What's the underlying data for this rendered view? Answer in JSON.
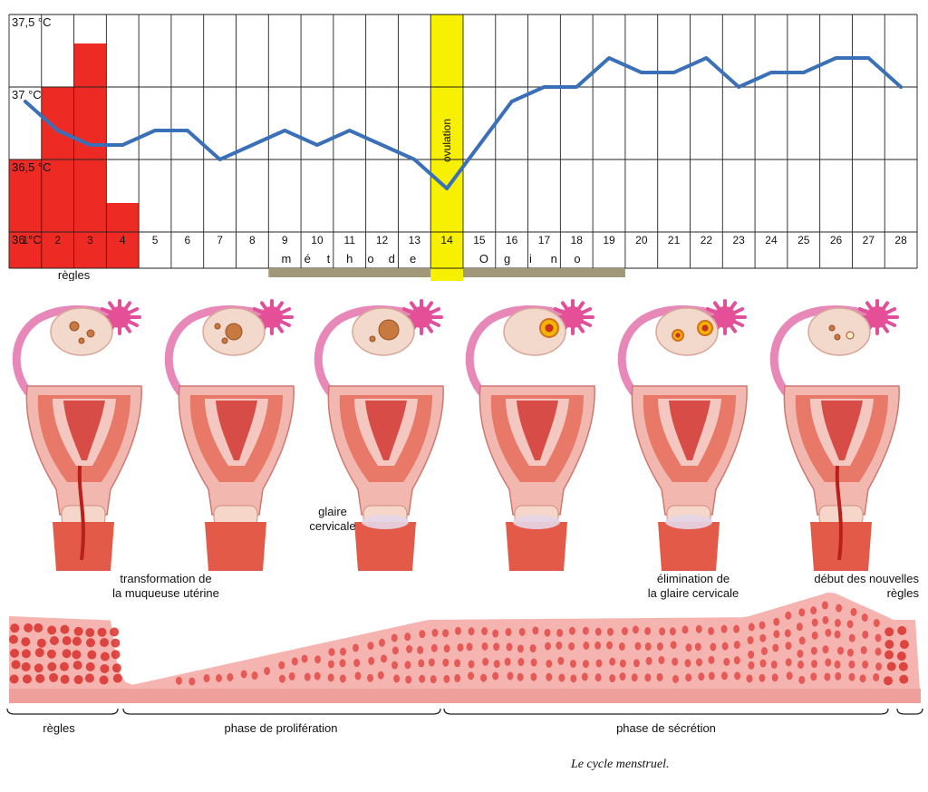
{
  "chart_data": {
    "type": "line",
    "temperature_axis": {
      "ticks": [
        "37,5 °C",
        "37 °C",
        "36,5 °C",
        "36 °C"
      ],
      "ylim": [
        36.0,
        37.5
      ]
    },
    "day_labels": [
      "1",
      "2",
      "3",
      "4",
      "5",
      "6",
      "7",
      "8",
      "9",
      "10",
      "11",
      "12",
      "13",
      "14",
      "15",
      "16",
      "17",
      "18",
      "19",
      "20",
      "21",
      "22",
      "23",
      "24",
      "25",
      "26",
      "27",
      "28"
    ],
    "temperature_series": {
      "x": [
        1,
        2,
        3,
        4,
        5,
        6,
        7,
        8,
        9,
        10,
        11,
        12,
        13,
        14,
        15,
        16,
        17,
        18,
        19,
        20,
        21,
        22,
        23,
        24,
        25,
        26,
        27,
        28
      ],
      "values": [
        36.9,
        36.7,
        36.6,
        36.6,
        36.7,
        36.7,
        36.5,
        36.6,
        36.7,
        36.6,
        36.7,
        36.6,
        36.5,
        36.3,
        36.6,
        36.9,
        37.0,
        37.0,
        37.2,
        37.1,
        37.1,
        37.2,
        37.0,
        37.1,
        37.1,
        37.2,
        37.2,
        37.0
      ]
    },
    "menses_bars": {
      "days": [
        1,
        2,
        3,
        4
      ],
      "values": [
        36.5,
        37.0,
        37.3,
        36.2
      ]
    },
    "ovulation_day": 14,
    "ovulation_label": "ovulation",
    "menses_label": "règles",
    "method_words": [
      "méthode",
      "Ogino"
    ],
    "colors": {
      "line": "#3a70b8",
      "bar": "#ee2a24",
      "ovulation": "#f7f000",
      "ogino_bar": "#a09878"
    }
  },
  "annotations": {
    "glaire": "glaire\ncervicale",
    "transformation": "transformation de\nla muqueuse utérine",
    "elimination": "élimination de\nla glaire cervicale",
    "debut": "début des nouvelles\nrègles"
  },
  "phases": [
    "règles",
    "phase de prolifération",
    "phase de sécrétion"
  ],
  "caption": "Le cycle menstruel.",
  "figure_icons": [
    "ovary-uterus-illustration",
    "endometrium-illustration"
  ]
}
